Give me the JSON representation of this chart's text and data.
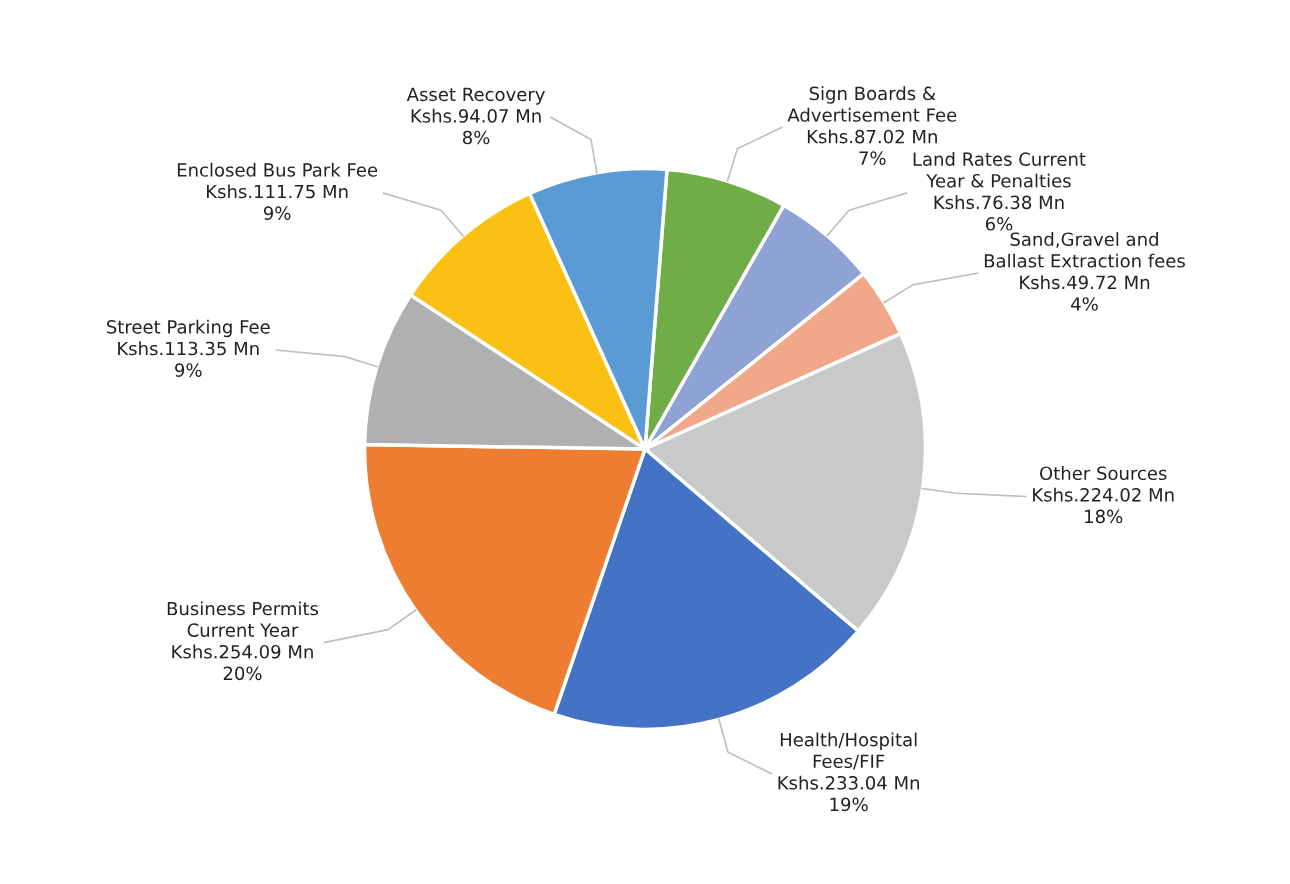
{
  "chart_data": {
    "type": "pie",
    "categories": [
      "Sign Boards &\nAdvertisement Fee",
      "Land Rates Current\nYear & Penalties",
      "Sand,Gravel and\nBallast Extraction fees",
      "Other Sources",
      "Health/Hospital\nFees/FIF",
      "Business Permits\nCurrent Year",
      "Street Parking Fee",
      "Enclosed Bus Park Fee",
      "Asset Recovery"
    ],
    "values": [
      7,
      6,
      4,
      18,
      19,
      20,
      9,
      9,
      8
    ],
    "colors": [
      "#70ad47",
      "#8fa2d4",
      "#f1a78a",
      "#c8c9ca",
      "#4472c4",
      "#ed7d31",
      "#afb0b2",
      "#fbc014",
      "#5b9bd5"
    ],
    "value_labels": [
      "Kshs.87.02 Mn\n7%",
      "Kshs.76.38 Mn\n6%",
      "Kshs.49.72 Mn\n4%",
      "Kshs.224.02 Mn\n18%",
      "Kshs.233.04 Mn\n19%",
      "Kshs.254.09 Mn\n20%",
      "Kshs.113.35 Mn\n9%",
      "Kshs.111.75 Mn\n9%",
      "Kshs.94.07 Mn\n8%"
    ],
    "legend": false
  }
}
